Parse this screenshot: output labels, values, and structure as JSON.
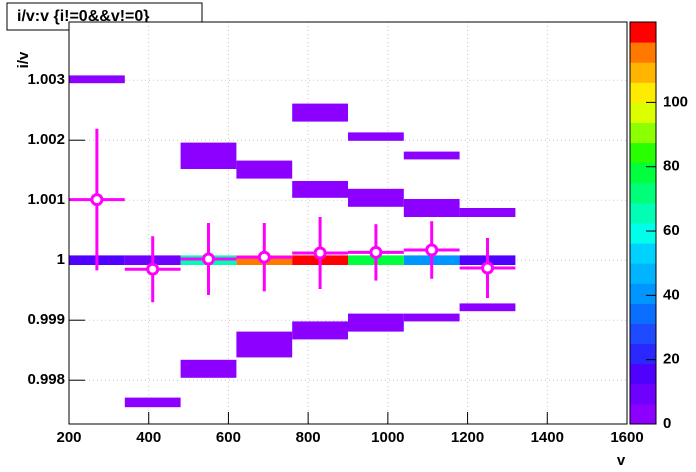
{
  "chart_data": {
    "type": "heatmap2d",
    "title": "i/v:v {i!=0&&v!=0}",
    "x_label": "v",
    "y_label": "i/v",
    "xlim": [
      200,
      1600
    ],
    "xticks": [
      200,
      400,
      600,
      800,
      1000,
      1200,
      1400,
      1600
    ],
    "ylim": [
      0.99727,
      1.00397
    ],
    "yticks": [
      0.998,
      0.999,
      1,
      1.001,
      1.002,
      1.003
    ],
    "zlim": [
      0,
      125
    ],
    "zticks": [
      0,
      20,
      40,
      60,
      80,
      100
    ],
    "grid": true,
    "palette": [
      "#8c00ff",
      "#6f00ff",
      "#5000ff",
      "#2a28ff",
      "#1e4bff",
      "#0a6eff",
      "#0096ff",
      "#00b4ff",
      "#00d2ff",
      "#00ffeb",
      "#00ffb4",
      "#00ff78",
      "#00ff3c",
      "#28ff00",
      "#8cff00",
      "#dcff00",
      "#ffeb00",
      "#ffb400",
      "#ff7800",
      "#ff0000"
    ],
    "cells": [
      {
        "x": [
          200,
          340
        ],
        "y": [
          1.00295,
          1.00308
        ],
        "value": 1
      },
      {
        "x": [
          200,
          340
        ],
        "y": [
          0.99992,
          1.00008
        ],
        "value": 15
      },
      {
        "x": [
          340,
          480
        ],
        "y": [
          0.99755,
          0.99771
        ],
        "value": 1
      },
      {
        "x": [
          340,
          480
        ],
        "y": [
          0.99992,
          1.00008
        ],
        "value": 12
      },
      {
        "x": [
          480,
          620
        ],
        "y": [
          1.00152,
          1.00196
        ],
        "value": 2
      },
      {
        "x": [
          480,
          620
        ],
        "y": [
          0.99992,
          1.00008
        ],
        "value": 65
      },
      {
        "x": [
          480,
          620
        ],
        "y": [
          0.99804,
          0.99834
        ],
        "value": 2
      },
      {
        "x": [
          620,
          760
        ],
        "y": [
          1.00136,
          1.00166
        ],
        "value": 2
      },
      {
        "x": [
          620,
          760
        ],
        "y": [
          0.99992,
          1.00008
        ],
        "value": 118
      },
      {
        "x": [
          620,
          760
        ],
        "y": [
          0.99838,
          0.99881
        ],
        "value": 2
      },
      {
        "x": [
          760,
          900
        ],
        "y": [
          1.00231,
          1.00261
        ],
        "value": 1
      },
      {
        "x": [
          760,
          900
        ],
        "y": [
          1.00104,
          1.00132
        ],
        "value": 3
      },
      {
        "x": [
          760,
          900
        ],
        "y": [
          0.99992,
          1.00008
        ],
        "value": 120
      },
      {
        "x": [
          760,
          900
        ],
        "y": [
          0.99868,
          0.99898
        ],
        "value": 2
      },
      {
        "x": [
          900,
          1040
        ],
        "y": [
          1.00199,
          1.00213
        ],
        "value": 1
      },
      {
        "x": [
          900,
          1040
        ],
        "y": [
          1.00089,
          1.00119
        ],
        "value": 2
      },
      {
        "x": [
          900,
          1040
        ],
        "y": [
          0.99992,
          1.00008
        ],
        "value": 75
      },
      {
        "x": [
          900,
          1040
        ],
        "y": [
          0.99881,
          0.99911
        ],
        "value": 2
      },
      {
        "x": [
          1040,
          1180
        ],
        "y": [
          1.00168,
          1.00181
        ],
        "value": 1
      },
      {
        "x": [
          1040,
          1180
        ],
        "y": [
          1.00072,
          1.00102
        ],
        "value": 2
      },
      {
        "x": [
          1040,
          1180
        ],
        "y": [
          0.99992,
          1.00008
        ],
        "value": 40
      },
      {
        "x": [
          1040,
          1180
        ],
        "y": [
          0.99898,
          0.99911
        ],
        "value": 1
      },
      {
        "x": [
          1180,
          1320
        ],
        "y": [
          1.00072,
          1.00087
        ],
        "value": 1
      },
      {
        "x": [
          1180,
          1320
        ],
        "y": [
          0.99992,
          1.00008
        ],
        "value": 15
      },
      {
        "x": [
          1180,
          1320
        ],
        "y": [
          0.99915,
          0.99928
        ],
        "value": 1
      }
    ],
    "profile": {
      "color": "#ff00ff",
      "xerr": 70,
      "points": [
        {
          "x": 270,
          "y": 1.00101,
          "yerr": 0.00118
        },
        {
          "x": 410,
          "y": 0.99985,
          "yerr": 0.00055
        },
        {
          "x": 550,
          "y": 1.00002,
          "yerr": 0.0006
        },
        {
          "x": 690,
          "y": 1.00005,
          "yerr": 0.00057
        },
        {
          "x": 830,
          "y": 1.00012,
          "yerr": 0.0006
        },
        {
          "x": 970,
          "y": 1.00013,
          "yerr": 0.00047
        },
        {
          "x": 1110,
          "y": 1.00017,
          "yerr": 0.00048
        },
        {
          "x": 1250,
          "y": 0.99987,
          "yerr": 0.0005
        }
      ]
    }
  }
}
